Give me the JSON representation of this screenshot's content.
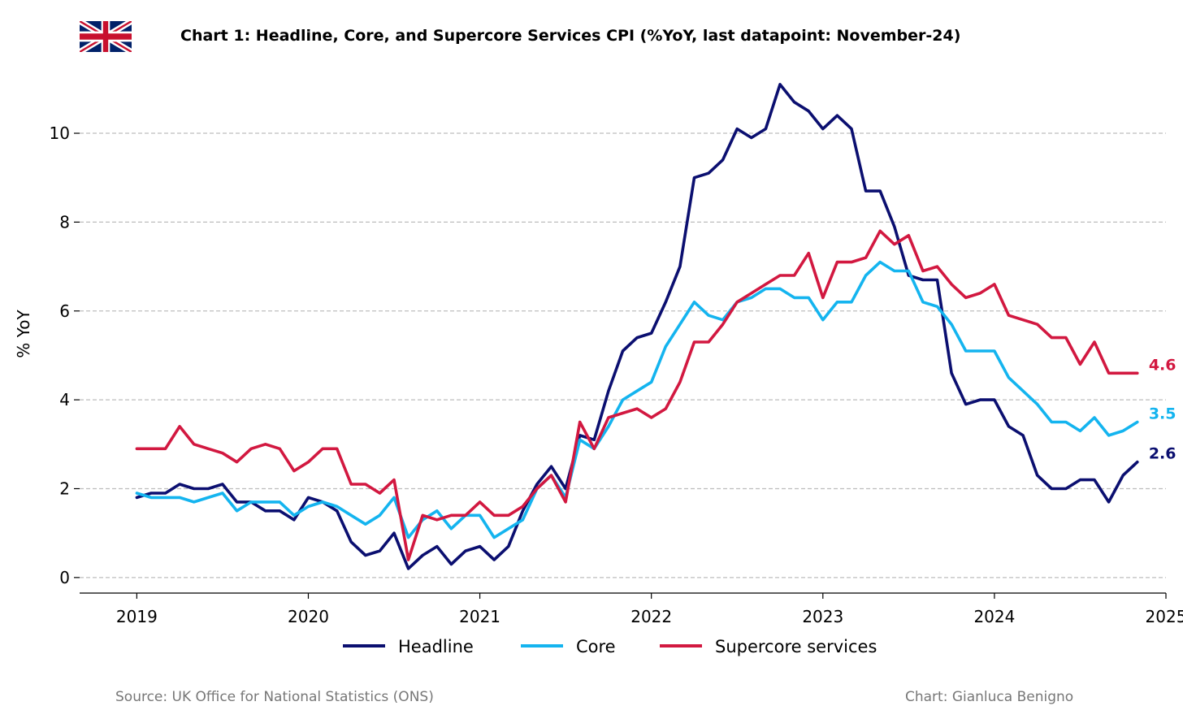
{
  "title": "Chart 1: Headline, Core, and Supercore Services CPI (%YoY, last datapoint: November-24)",
  "source_note": "Source: UK Office for National Statistics (ONS)",
  "credit_note": "Chart: Gianluca Benigno",
  "flag_icon": "uk-flag-icon",
  "chart_data": {
    "type": "line",
    "title": "Chart 1: Headline, Core, and Supercore Services CPI (%YoY, last datapoint: November-24)",
    "ylabel": "% YoY",
    "xlabel": "",
    "x_start": "2019-01",
    "x_end": "2024-11",
    "x_frequency": "monthly",
    "xlim": [
      "2018-09",
      "2025-01"
    ],
    "ylim": [
      -0.35,
      11.5
    ],
    "x_ticks": [
      "2019",
      "2020",
      "2021",
      "2022",
      "2023",
      "2024",
      "2025"
    ],
    "y_ticks": [
      0,
      2,
      4,
      6,
      8,
      10
    ],
    "grid": "horizontal dashed",
    "legend_position": "bottom-center",
    "series": [
      {
        "name": "Headline",
        "color": "#0b0f70",
        "end_label": "2.6",
        "values": [
          1.8,
          1.9,
          1.9,
          2.1,
          2.0,
          2.0,
          2.1,
          1.7,
          1.7,
          1.5,
          1.5,
          1.3,
          1.8,
          1.7,
          1.5,
          0.8,
          0.5,
          0.6,
          1.0,
          0.2,
          0.5,
          0.7,
          0.3,
          0.6,
          0.7,
          0.4,
          0.7,
          1.5,
          2.1,
          2.5,
          2.0,
          3.2,
          3.1,
          4.2,
          5.1,
          5.4,
          5.5,
          6.2,
          7.0,
          9.0,
          9.1,
          9.4,
          10.1,
          9.9,
          10.1,
          11.1,
          10.7,
          10.5,
          10.1,
          10.4,
          10.1,
          8.7,
          8.7,
          7.9,
          6.8,
          6.7,
          6.7,
          4.6,
          3.9,
          4.0,
          4.0,
          3.4,
          3.2,
          2.3,
          2.0,
          2.0,
          2.2,
          2.2,
          1.7,
          2.3,
          2.6
        ]
      },
      {
        "name": "Core",
        "color": "#14b4ef",
        "end_label": "3.5",
        "values": [
          1.9,
          1.8,
          1.8,
          1.8,
          1.7,
          1.8,
          1.9,
          1.5,
          1.7,
          1.7,
          1.7,
          1.4,
          1.6,
          1.7,
          1.6,
          1.4,
          1.2,
          1.4,
          1.8,
          0.9,
          1.3,
          1.5,
          1.1,
          1.4,
          1.4,
          0.9,
          1.1,
          1.3,
          2.0,
          2.3,
          1.8,
          3.1,
          2.9,
          3.4,
          4.0,
          4.2,
          4.4,
          5.2,
          5.7,
          6.2,
          5.9,
          5.8,
          6.2,
          6.3,
          6.5,
          6.5,
          6.3,
          6.3,
          5.8,
          6.2,
          6.2,
          6.8,
          7.1,
          6.9,
          6.9,
          6.2,
          6.1,
          5.7,
          5.1,
          5.1,
          5.1,
          4.5,
          4.2,
          3.9,
          3.5,
          3.5,
          3.3,
          3.6,
          3.2,
          3.3,
          3.5
        ]
      },
      {
        "name": "Supercore services",
        "color": "#d21840",
        "end_label": "4.6",
        "values": [
          2.9,
          2.9,
          2.9,
          3.4,
          3.0,
          2.9,
          2.8,
          2.6,
          2.9,
          3.0,
          2.9,
          2.4,
          2.6,
          2.9,
          2.9,
          2.1,
          2.1,
          1.9,
          2.2,
          0.4,
          1.4,
          1.3,
          1.4,
          1.4,
          1.7,
          1.4,
          1.4,
          1.6,
          2.0,
          2.3,
          1.7,
          3.5,
          2.9,
          3.6,
          3.7,
          3.8,
          3.6,
          3.8,
          4.4,
          5.3,
          5.3,
          5.7,
          6.2,
          6.4,
          6.6,
          6.8,
          6.8,
          7.3,
          6.3,
          7.1,
          7.1,
          7.2,
          7.8,
          7.5,
          7.7,
          6.9,
          7.0,
          6.6,
          6.3,
          6.4,
          6.6,
          5.9,
          5.8,
          5.7,
          5.4,
          5.4,
          4.8,
          5.3,
          4.6,
          4.6,
          4.6
        ]
      }
    ]
  }
}
